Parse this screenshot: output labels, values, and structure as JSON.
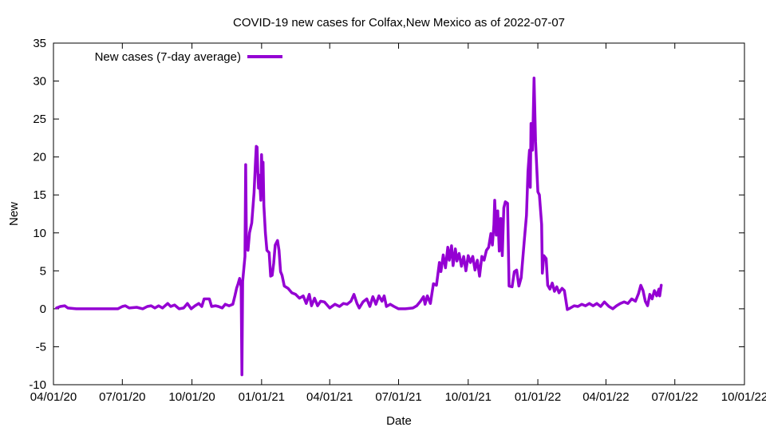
{
  "chart_data": {
    "type": "line",
    "title": "COVID-19 new cases for Colfax,New Mexico as of 2022-07-07",
    "xlabel": "Date",
    "ylabel": "New",
    "xlim": [
      "2020-04-01",
      "2022-10-01"
    ],
    "ylim": [
      -10,
      35
    ],
    "x_ticks": [
      "04/01/20",
      "07/01/20",
      "10/01/20",
      "01/01/21",
      "04/01/21",
      "07/01/21",
      "10/01/21",
      "01/01/22",
      "04/01/22",
      "07/01/22",
      "10/01/22"
    ],
    "x_tick_dates": [
      "2020-04-01",
      "2020-07-01",
      "2020-10-01",
      "2021-01-01",
      "2021-04-01",
      "2021-07-01",
      "2021-10-01",
      "2022-01-01",
      "2022-04-01",
      "2022-07-01",
      "2022-10-01"
    ],
    "y_ticks": [
      -10,
      -5,
      0,
      5,
      10,
      15,
      20,
      25,
      30,
      35
    ],
    "grid": false,
    "legend_position": "top-left",
    "series": [
      {
        "name": "New cases (7-day average)",
        "color": "#9400d3",
        "points": [
          [
            "2020-04-05",
            0.1
          ],
          [
            "2020-04-10",
            0.3
          ],
          [
            "2020-04-16",
            0.4
          ],
          [
            "2020-04-20",
            0.1
          ],
          [
            "2020-05-01",
            0.0
          ],
          [
            "2020-05-20",
            0.0
          ],
          [
            "2020-06-10",
            0.0
          ],
          [
            "2020-06-25",
            0.0
          ],
          [
            "2020-07-01",
            0.3
          ],
          [
            "2020-07-05",
            0.4
          ],
          [
            "2020-07-10",
            0.1
          ],
          [
            "2020-07-20",
            0.2
          ],
          [
            "2020-07-28",
            0.0
          ],
          [
            "2020-08-03",
            0.3
          ],
          [
            "2020-08-08",
            0.4
          ],
          [
            "2020-08-13",
            0.1
          ],
          [
            "2020-08-18",
            0.4
          ],
          [
            "2020-08-23",
            0.1
          ],
          [
            "2020-08-30",
            0.7
          ],
          [
            "2020-09-03",
            0.3
          ],
          [
            "2020-09-08",
            0.5
          ],
          [
            "2020-09-14",
            0.0
          ],
          [
            "2020-09-20",
            0.1
          ],
          [
            "2020-09-25",
            0.7
          ],
          [
            "2020-09-30",
            0.0
          ],
          [
            "2020-10-05",
            0.4
          ],
          [
            "2020-10-10",
            0.7
          ],
          [
            "2020-10-14",
            0.3
          ],
          [
            "2020-10-17",
            1.3
          ],
          [
            "2020-10-24",
            1.3
          ],
          [
            "2020-10-27",
            0.3
          ],
          [
            "2020-11-01",
            0.4
          ],
          [
            "2020-11-05",
            0.3
          ],
          [
            "2020-11-10",
            0.1
          ],
          [
            "2020-11-14",
            0.6
          ],
          [
            "2020-11-19",
            0.4
          ],
          [
            "2020-11-24",
            0.6
          ],
          [
            "2020-11-27",
            1.8
          ],
          [
            "2020-11-29",
            2.7
          ],
          [
            "2020-12-01",
            3.3
          ],
          [
            "2020-12-03",
            4.0
          ],
          [
            "2020-12-05",
            2.9
          ],
          [
            "2020-12-06",
            -8.7
          ],
          [
            "2020-12-07",
            3.6
          ],
          [
            "2020-12-10",
            6.9
          ],
          [
            "2020-12-11",
            19.0
          ],
          [
            "2020-12-12",
            8.0
          ],
          [
            "2020-12-14",
            7.7
          ],
          [
            "2020-12-16",
            10.0
          ],
          [
            "2020-12-19",
            11.3
          ],
          [
            "2020-12-22",
            15.3
          ],
          [
            "2020-12-24",
            19.6
          ],
          [
            "2020-12-25",
            21.4
          ],
          [
            "2020-12-26",
            21.3
          ],
          [
            "2020-12-27",
            18.1
          ],
          [
            "2020-12-28",
            15.9
          ],
          [
            "2020-12-29",
            17.6
          ],
          [
            "2020-12-31",
            14.3
          ],
          [
            "2021-01-01",
            20.3
          ],
          [
            "2021-01-02",
            17.0
          ],
          [
            "2021-01-03",
            19.3
          ],
          [
            "2021-01-04",
            13.6
          ],
          [
            "2021-01-06",
            10.0
          ],
          [
            "2021-01-08",
            7.7
          ],
          [
            "2021-01-11",
            7.4
          ],
          [
            "2021-01-13",
            4.3
          ],
          [
            "2021-01-15",
            4.4
          ],
          [
            "2021-01-17",
            6.0
          ],
          [
            "2021-01-19",
            8.4
          ],
          [
            "2021-01-22",
            9.0
          ],
          [
            "2021-01-24",
            7.7
          ],
          [
            "2021-01-26",
            4.9
          ],
          [
            "2021-01-28",
            4.4
          ],
          [
            "2021-01-31",
            3.0
          ],
          [
            "2021-02-05",
            2.7
          ],
          [
            "2021-02-10",
            2.1
          ],
          [
            "2021-02-15",
            1.9
          ],
          [
            "2021-02-20",
            1.4
          ],
          [
            "2021-02-25",
            1.7
          ],
          [
            "2021-03-01",
            0.7
          ],
          [
            "2021-03-05",
            1.9
          ],
          [
            "2021-03-08",
            0.4
          ],
          [
            "2021-03-12",
            1.4
          ],
          [
            "2021-03-16",
            0.4
          ],
          [
            "2021-03-20",
            1.0
          ],
          [
            "2021-03-25",
            0.9
          ],
          [
            "2021-04-01",
            0.1
          ],
          [
            "2021-04-08",
            0.6
          ],
          [
            "2021-04-14",
            0.3
          ],
          [
            "2021-04-19",
            0.7
          ],
          [
            "2021-04-24",
            0.6
          ],
          [
            "2021-04-29",
            1.0
          ],
          [
            "2021-05-03",
            1.9
          ],
          [
            "2021-05-07",
            0.7
          ],
          [
            "2021-05-10",
            0.1
          ],
          [
            "2021-05-15",
            0.9
          ],
          [
            "2021-05-20",
            1.3
          ],
          [
            "2021-05-24",
            0.3
          ],
          [
            "2021-05-28",
            1.6
          ],
          [
            "2021-06-01",
            0.6
          ],
          [
            "2021-06-05",
            1.7
          ],
          [
            "2021-06-09",
            1.0
          ],
          [
            "2021-06-12",
            1.7
          ],
          [
            "2021-06-15",
            0.3
          ],
          [
            "2021-06-20",
            0.6
          ],
          [
            "2021-06-25",
            0.3
          ],
          [
            "2021-07-01",
            0.0
          ],
          [
            "2021-07-10",
            0.0
          ],
          [
            "2021-07-20",
            0.1
          ],
          [
            "2021-07-25",
            0.4
          ],
          [
            "2021-07-30",
            1.0
          ],
          [
            "2021-08-03",
            1.6
          ],
          [
            "2021-08-05",
            0.6
          ],
          [
            "2021-08-08",
            1.7
          ],
          [
            "2021-08-12",
            0.7
          ],
          [
            "2021-08-16",
            3.3
          ],
          [
            "2021-08-20",
            3.1
          ],
          [
            "2021-08-24",
            6.1
          ],
          [
            "2021-08-26",
            4.9
          ],
          [
            "2021-08-29",
            7.1
          ],
          [
            "2021-09-01",
            5.4
          ],
          [
            "2021-09-04",
            8.1
          ],
          [
            "2021-09-06",
            6.4
          ],
          [
            "2021-09-09",
            8.3
          ],
          [
            "2021-09-11",
            5.7
          ],
          [
            "2021-09-14",
            7.9
          ],
          [
            "2021-09-16",
            6.3
          ],
          [
            "2021-09-19",
            7.3
          ],
          [
            "2021-09-22",
            5.6
          ],
          [
            "2021-09-25",
            6.9
          ],
          [
            "2021-09-28",
            5.0
          ],
          [
            "2021-10-01",
            7.0
          ],
          [
            "2021-10-04",
            6.1
          ],
          [
            "2021-10-07",
            6.9
          ],
          [
            "2021-10-10",
            5.1
          ],
          [
            "2021-10-13",
            6.4
          ],
          [
            "2021-10-16",
            4.3
          ],
          [
            "2021-10-19",
            6.9
          ],
          [
            "2021-10-22",
            6.4
          ],
          [
            "2021-10-25",
            7.7
          ],
          [
            "2021-10-28",
            8.1
          ],
          [
            "2021-10-31",
            9.9
          ],
          [
            "2021-11-02",
            8.4
          ],
          [
            "2021-11-04",
            11.1
          ],
          [
            "2021-11-05",
            14.3
          ],
          [
            "2021-11-07",
            9.7
          ],
          [
            "2021-11-09",
            12.9
          ],
          [
            "2021-11-11",
            7.6
          ],
          [
            "2021-11-13",
            11.9
          ],
          [
            "2021-11-15",
            7.0
          ],
          [
            "2021-11-17",
            13.3
          ],
          [
            "2021-11-19",
            14.1
          ],
          [
            "2021-11-22",
            13.9
          ],
          [
            "2021-11-24",
            3.0
          ],
          [
            "2021-11-28",
            2.9
          ],
          [
            "2021-12-01",
            4.9
          ],
          [
            "2021-12-04",
            5.1
          ],
          [
            "2021-12-07",
            3.0
          ],
          [
            "2021-12-10",
            4.1
          ],
          [
            "2021-12-14",
            8.9
          ],
          [
            "2021-12-17",
            12.3
          ],
          [
            "2021-12-19",
            18.1
          ],
          [
            "2021-12-21",
            20.9
          ],
          [
            "2021-12-22",
            16.0
          ],
          [
            "2021-12-23",
            24.4
          ],
          [
            "2021-12-25",
            20.9
          ],
          [
            "2021-12-27",
            30.4
          ],
          [
            "2021-12-29",
            22.0
          ],
          [
            "2022-01-01",
            15.4
          ],
          [
            "2022-01-03",
            15.0
          ],
          [
            "2022-01-06",
            11.1
          ],
          [
            "2022-01-07",
            4.7
          ],
          [
            "2022-01-09",
            7.0
          ],
          [
            "2022-01-12",
            6.6
          ],
          [
            "2022-01-14",
            3.1
          ],
          [
            "2022-01-17",
            2.6
          ],
          [
            "2022-01-20",
            3.4
          ],
          [
            "2022-01-23",
            2.3
          ],
          [
            "2022-01-26",
            2.9
          ],
          [
            "2022-01-29",
            2.1
          ],
          [
            "2022-02-02",
            2.7
          ],
          [
            "2022-02-05",
            2.4
          ],
          [
            "2022-02-09",
            -0.1
          ],
          [
            "2022-02-13",
            0.1
          ],
          [
            "2022-02-18",
            0.4
          ],
          [
            "2022-02-23",
            0.3
          ],
          [
            "2022-02-28",
            0.6
          ],
          [
            "2022-03-05",
            0.4
          ],
          [
            "2022-03-10",
            0.7
          ],
          [
            "2022-03-15",
            0.4
          ],
          [
            "2022-03-20",
            0.7
          ],
          [
            "2022-03-25",
            0.3
          ],
          [
            "2022-03-30",
            0.9
          ],
          [
            "2022-04-05",
            0.3
          ],
          [
            "2022-04-10",
            0.0
          ],
          [
            "2022-04-15",
            0.4
          ],
          [
            "2022-04-20",
            0.7
          ],
          [
            "2022-04-25",
            0.9
          ],
          [
            "2022-04-30",
            0.7
          ],
          [
            "2022-05-05",
            1.3
          ],
          [
            "2022-05-10",
            1.0
          ],
          [
            "2022-05-14",
            2.0
          ],
          [
            "2022-05-17",
            3.1
          ],
          [
            "2022-05-20",
            2.4
          ],
          [
            "2022-05-23",
            1.0
          ],
          [
            "2022-05-26",
            0.4
          ],
          [
            "2022-05-29",
            1.9
          ],
          [
            "2022-06-01",
            1.3
          ],
          [
            "2022-06-04",
            2.4
          ],
          [
            "2022-06-07",
            1.7
          ],
          [
            "2022-06-10",
            2.6
          ],
          [
            "2022-06-11",
            1.7
          ],
          [
            "2022-06-13",
            3.1
          ]
        ]
      }
    ]
  }
}
